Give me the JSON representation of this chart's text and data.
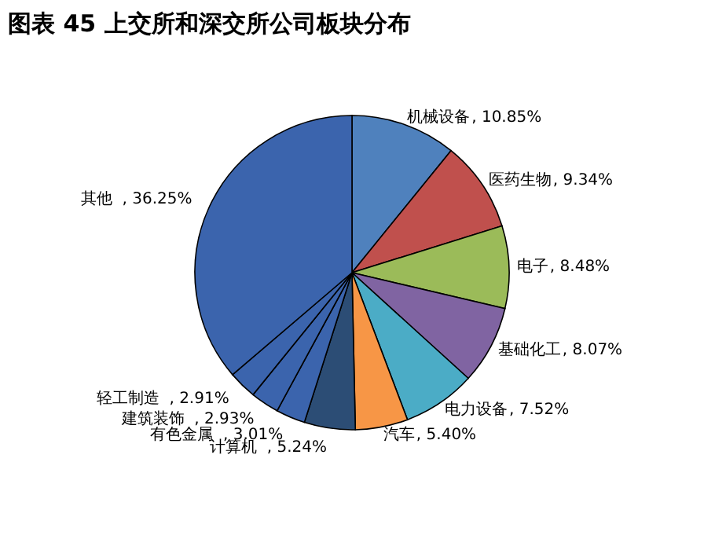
{
  "chart_data": {
    "type": "pie",
    "title": "图表 45 上交所和深交所公司板块分布",
    "categories": [
      "机械设备",
      "医药生物",
      "电子",
      "基础化工",
      "电力设备",
      "汽车",
      "计算机",
      "有色金属",
      "建筑装饰",
      "轻工制造",
      "其他"
    ],
    "values": [
      10.85,
      9.34,
      8.48,
      8.07,
      7.52,
      5.4,
      5.24,
      3.01,
      2.93,
      2.91,
      36.25
    ],
    "colors": [
      "#4f81bd",
      "#c0504d",
      "#9bbb59",
      "#8064a2",
      "#4bacc6",
      "#f79646",
      "#2c4d75",
      "#3b64ad",
      "#3b64ad",
      "#3b64ad",
      "#3b64ad"
    ],
    "value_labels": [
      ", 10.85%",
      ", 9.34%",
      ", 8.48%",
      ", 8.07%",
      ", 7.52%",
      ", 5.40%",
      ", 5.24%",
      ", 3.01%",
      ", 2.93%",
      ", 2.91%",
      ", 36.25%"
    ],
    "legend": false
  }
}
